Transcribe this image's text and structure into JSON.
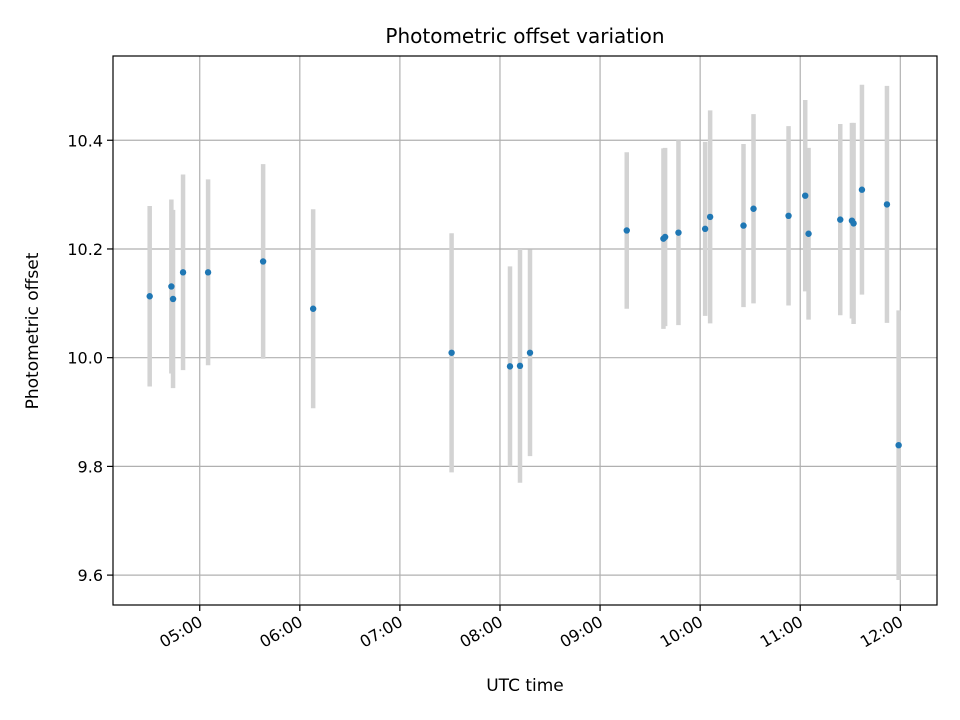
{
  "chart_data": {
    "type": "scatter",
    "title": "Photometric offset variation",
    "xlabel": "UTC time",
    "ylabel": "Photometric offset",
    "x_axis_type": "time",
    "xlim": [
      "04:08",
      "12:22"
    ],
    "ylim": [
      9.545,
      10.555
    ],
    "x_ticks": [
      {
        "value": "05:00",
        "label": "05:00"
      },
      {
        "value": "06:00",
        "label": "06:00"
      },
      {
        "value": "07:00",
        "label": "07:00"
      },
      {
        "value": "08:00",
        "label": "08:00"
      },
      {
        "value": "09:00",
        "label": "09:00"
      },
      {
        "value": "10:00",
        "label": "10:00"
      },
      {
        "value": "11:00",
        "label": "11:00"
      },
      {
        "value": "12:00",
        "label": "12:00"
      }
    ],
    "y_ticks": [
      {
        "value": 9.6,
        "label": "9.6"
      },
      {
        "value": 9.8,
        "label": "9.8"
      },
      {
        "value": 10.0,
        "label": "10.0"
      },
      {
        "value": 10.2,
        "label": "10.2"
      },
      {
        "value": 10.4,
        "label": "10.4"
      }
    ],
    "grid": true,
    "point_color": "#1f77b4",
    "errorbar_color": "#d3d3d3",
    "points": [
      {
        "x": "04:30",
        "y": 10.113,
        "err": 0.166
      },
      {
        "x": "04:43",
        "y": 10.131,
        "err": 0.16
      },
      {
        "x": "04:44",
        "y": 10.108,
        "err": 0.164
      },
      {
        "x": "04:50",
        "y": 10.157,
        "err": 0.18
      },
      {
        "x": "05:05",
        "y": 10.157,
        "err": 0.171
      },
      {
        "x": "05:38",
        "y": 10.177,
        "err": 0.179
      },
      {
        "x": "06:08",
        "y": 10.09,
        "err": 0.183
      },
      {
        "x": "07:31",
        "y": 10.009,
        "err": 0.22
      },
      {
        "x": "08:06",
        "y": 9.984,
        "err": 0.184
      },
      {
        "x": "08:12",
        "y": 9.985,
        "err": 0.215
      },
      {
        "x": "08:18",
        "y": 10.009,
        "err": 0.19
      },
      {
        "x": "09:16",
        "y": 10.234,
        "err": 0.144
      },
      {
        "x": "09:38",
        "y": 10.219,
        "err": 0.166
      },
      {
        "x": "09:39",
        "y": 10.222,
        "err": 0.164
      },
      {
        "x": "09:47",
        "y": 10.23,
        "err": 0.17
      },
      {
        "x": "10:03",
        "y": 10.237,
        "err": 0.16
      },
      {
        "x": "10:06",
        "y": 10.259,
        "err": 0.196
      },
      {
        "x": "10:26",
        "y": 10.243,
        "err": 0.15
      },
      {
        "x": "10:32",
        "y": 10.274,
        "err": 0.174
      },
      {
        "x": "10:53",
        "y": 10.261,
        "err": 0.165
      },
      {
        "x": "11:03",
        "y": 10.298,
        "err": 0.176
      },
      {
        "x": "11:05",
        "y": 10.228,
        "err": 0.158
      },
      {
        "x": "11:24",
        "y": 10.254,
        "err": 0.176
      },
      {
        "x": "11:31",
        "y": 10.252,
        "err": 0.18
      },
      {
        "x": "11:32",
        "y": 10.247,
        "err": 0.185
      },
      {
        "x": "11:37",
        "y": 10.309,
        "err": 0.193
      },
      {
        "x": "11:52",
        "y": 10.282,
        "err": 0.218
      },
      {
        "x": "11:59",
        "y": 9.839,
        "err": 0.248
      }
    ]
  }
}
